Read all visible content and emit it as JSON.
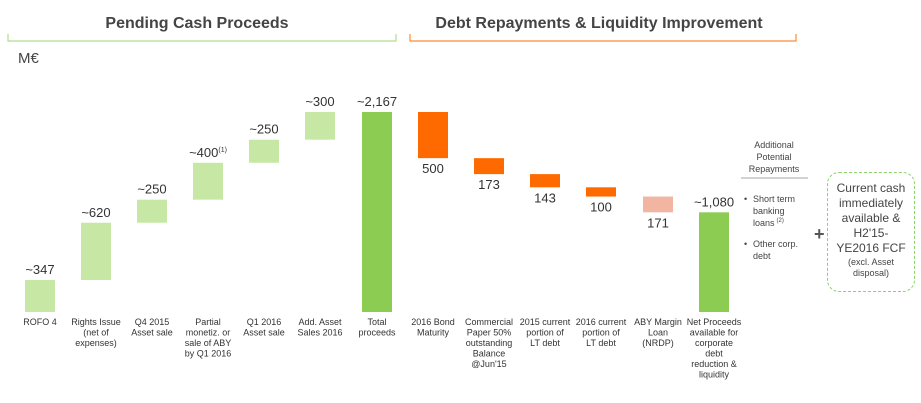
{
  "header": {
    "left_title": "Pending Cash Proceeds",
    "right_title": "Debt Repayments & Liquidity Improvement",
    "unit": "M€"
  },
  "chart_data": {
    "type": "bar",
    "subtype": "waterfall",
    "title": "",
    "ylabel": "M€",
    "ylim": [
      0,
      2200
    ],
    "categories": [
      "ROFO 4",
      "Rights Issue (net of expenses)",
      "Q4 2015 Asset sale",
      "Partial monetiz. or sale of ABY by Q1 2016",
      "Q1 2016 Asset sale",
      "Add. Asset Sales 2016",
      "Total proceeds",
      "2016 Bond Maturity",
      "Commercial Paper 50% outstanding Balance @Jun'15",
      "2015 current portion of LT debt",
      "2016 current portion of LT debt",
      "ABY Margin Loan (NRDP)",
      "Net Proceeds available for corporate debt reduction & liquidity"
    ],
    "category_lines": [
      [
        "ROFO 4"
      ],
      [
        "Rights Issue",
        "(net of",
        "expenses)"
      ],
      [
        "Q4 2015",
        "Asset sale"
      ],
      [
        "Partial",
        "monetiz. or",
        "sale of ABY",
        "by Q1 2016"
      ],
      [
        "Q1 2016",
        "Asset sale"
      ],
      [
        "Add. Asset",
        "Sales 2016"
      ],
      [
        "Total",
        "proceeds"
      ],
      [
        "2016 Bond",
        "Maturity"
      ],
      [
        "Commercial",
        "Paper 50%",
        "outstanding",
        "Balance",
        "@Jun'15"
      ],
      [
        "2015 current",
        "portion of",
        "LT debt"
      ],
      [
        "2016 current",
        "portion of",
        "LT debt"
      ],
      [
        "ABY Margin",
        "Loan",
        "(NRDP)"
      ],
      [
        "Net Proceeds",
        "available for",
        "corporate",
        "debt",
        "reduction &",
        "liquidity"
      ]
    ],
    "values": [
      347,
      620,
      250,
      400,
      250,
      300,
      2167,
      500,
      173,
      143,
      100,
      171,
      1080
    ],
    "value_labels": [
      "~347",
      "~620",
      "~250",
      "~400",
      "~250",
      "~300",
      "~2,167",
      "500",
      "173",
      "143",
      "100",
      "171",
      "~1,080"
    ],
    "bar_kinds": [
      "increase",
      "increase",
      "increase",
      "increase",
      "increase",
      "increase",
      "total",
      "decrease",
      "decrease",
      "decrease",
      "decrease",
      "decrease_optional",
      "total"
    ],
    "footnote_markers": {
      "3": "(1)"
    },
    "colors": {
      "increase": "#c7e8a5",
      "total": "#8ccc52",
      "decrease": "#ff6a00",
      "decrease_optional": "#f2b5a2",
      "left_bracket": "#b5dc8f",
      "right_bracket": "#ff8c33"
    }
  },
  "side_panel": {
    "title_lines": [
      "Additional",
      "Potential",
      "Repayments"
    ],
    "bullets": [
      {
        "lines": [
          "Short term",
          "banking",
          "loans"
        ],
        "footnote": "(2)"
      },
      {
        "lines": [
          "Other corp.",
          "debt"
        ]
      }
    ]
  },
  "callout": {
    "plus": "+",
    "main_lines": [
      "Current cash",
      "immediately",
      "available &",
      "H2'15-",
      "YE2016 FCF"
    ],
    "sub_lines": [
      "(excl. Asset",
      "disposal)"
    ]
  }
}
